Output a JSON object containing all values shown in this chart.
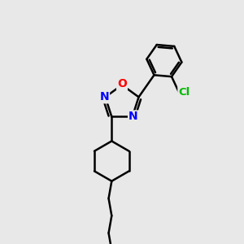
{
  "background_color": "#e8e8e8",
  "bond_color": "#000000",
  "bond_width": 1.8,
  "atom_colors": {
    "O": "#ff0000",
    "N": "#0000ff",
    "Cl": "#00bb00",
    "C": "#000000"
  },
  "font_size_atoms": 10,
  "fig_size": [
    3.0,
    3.0
  ],
  "dpi": 100,
  "xlim": [
    0,
    10
  ],
  "ylim": [
    0,
    10
  ]
}
